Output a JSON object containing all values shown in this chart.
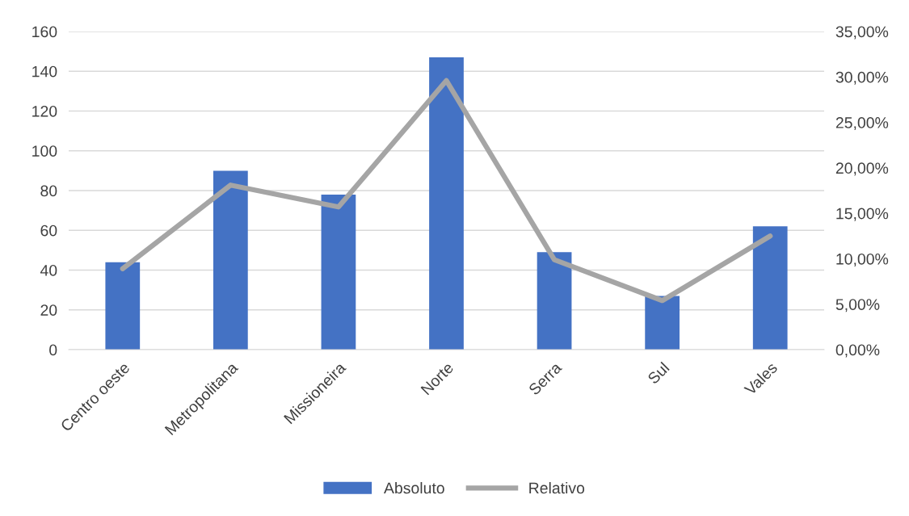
{
  "chart_data": {
    "type": "bar",
    "categories": [
      "Centro oeste",
      "Metropolitana",
      "Missioneira",
      "Norte",
      "Serra",
      "Sul",
      "Vales"
    ],
    "series": [
      {
        "name": "Absoluto",
        "color": "#4472c4",
        "values": [
          44,
          90,
          78,
          147,
          49,
          27,
          62
        ]
      },
      {
        "name": "Relativo",
        "type": "line",
        "axis": "y2",
        "color": "#a5a5a5",
        "values": [
          8.9,
          18.1,
          15.7,
          29.6,
          9.9,
          5.4,
          12.5
        ]
      }
    ],
    "ylim": [
      0,
      160
    ],
    "yticks": [
      0,
      20,
      40,
      60,
      80,
      100,
      120,
      140,
      160
    ],
    "y2lim": [
      0,
      35
    ],
    "y2ticks": [
      {
        "value": 0,
        "label": "0,00%"
      },
      {
        "value": 5,
        "label": "5,00%"
      },
      {
        "value": 10,
        "label": "10,00%"
      },
      {
        "value": 15,
        "label": "15,00%"
      },
      {
        "value": 20,
        "label": "20,00%"
      },
      {
        "value": 25,
        "label": "25,00%"
      },
      {
        "value": 30,
        "label": "30,00%"
      },
      {
        "value": 35,
        "label": "35,00%"
      }
    ],
    "grid": "y",
    "legend": "bottom",
    "marker": "none",
    "line_style": "solid"
  }
}
